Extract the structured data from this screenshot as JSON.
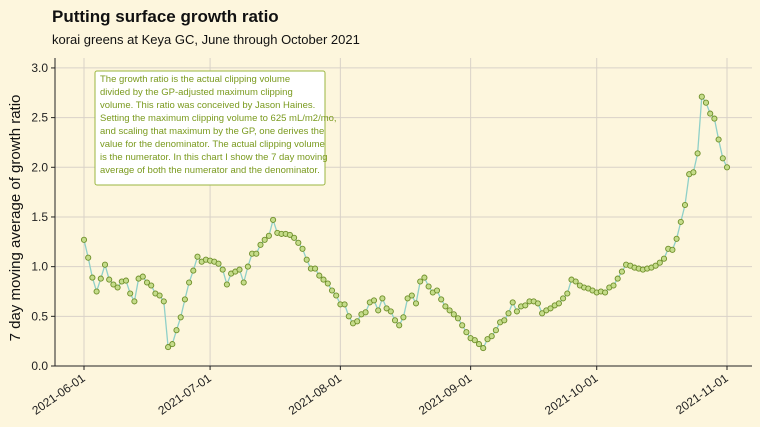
{
  "chart_data": {
    "type": "line",
    "title": "Putting surface growth ratio",
    "subtitle": "korai greens at Keya GC, June through October 2021",
    "ylabel": "7 day moving average of growth ratio",
    "xlabel": "",
    "x_ticks": [
      "2021-06-01",
      "2021-07-01",
      "2021-08-01",
      "2021-09-01",
      "2021-10-01",
      "2021-11-01"
    ],
    "y_ticks": [
      "0.0",
      "0.5",
      "1.0",
      "1.5",
      "2.0",
      "2.5",
      "3.0"
    ],
    "xlim": [
      "2021-06-01",
      "2021-11-01"
    ],
    "ylim": [
      0,
      3.1
    ],
    "grid": true,
    "line_color": "#8fd0c8",
    "point_fill": "#c5dc8a",
    "point_stroke": "#6f8f2a",
    "annotation": {
      "lines": [
        "The growth ratio is the actual clipping volume",
        "divided by the GP-adjusted maximum clipping",
        "volume. This ratio was conceived by Jason Haines.",
        "Setting the maximum clipping volume to 625 mL/m2/mo,",
        "and scaling that maximum by the GP, one derives the",
        "value for the denominator. The actual clipping volume",
        "is the numerator. In this chart I show the 7 day moving",
        "average of both the numerator and the denominator."
      ]
    },
    "series": [
      {
        "start_date": "2021-06-01",
        "values": [
          1.27,
          1.09,
          0.89,
          0.75,
          0.88,
          1.02,
          0.87,
          0.82,
          0.79,
          0.85,
          0.86,
          0.73,
          0.65,
          0.88,
          0.9,
          0.84,
          0.81,
          0.73,
          0.71,
          0.65,
          0.19,
          0.22,
          0.36,
          0.49,
          0.67,
          0.84,
          0.96,
          1.1,
          1.05,
          1.07,
          1.06,
          1.05,
          1.03,
          0.97,
          0.82,
          0.93,
          0.95,
          0.97,
          0.84,
          1.0,
          1.13,
          1.13,
          1.22,
          1.27,
          1.31,
          1.47,
          1.34,
          1.33,
          1.33,
          1.32,
          1.29,
          1.24,
          1.18,
          1.07,
          0.98,
          0.98,
          0.91,
          0.87,
          0.83,
          0.76,
          0.71,
          0.62,
          0.62,
          0.5,
          0.43,
          0.45,
          0.52,
          0.54,
          0.64,
          0.66,
          0.56,
          0.68,
          0.58,
          0.55,
          0.46,
          0.41,
          0.49,
          0.68,
          0.71,
          0.63,
          0.85,
          0.89,
          0.8,
          0.74,
          0.76,
          0.67,
          0.6,
          0.56,
          0.52,
          0.48,
          0.41,
          0.34,
          0.28,
          0.26,
          0.22,
          0.18,
          0.27,
          0.3,
          0.36,
          0.44,
          0.46,
          0.53,
          0.64,
          0.55,
          0.6,
          0.61,
          0.65,
          0.65,
          0.63,
          0.53,
          0.56,
          0.58,
          0.61,
          0.63,
          0.68,
          0.73,
          0.87,
          0.85,
          0.81,
          0.79,
          0.78,
          0.76,
          0.74,
          0.75,
          0.74,
          0.79,
          0.81,
          0.88,
          0.95,
          1.02,
          1.01,
          0.99,
          0.98,
          0.97,
          0.98,
          0.99,
          1.01,
          1.04,
          1.08,
          1.18,
          1.17,
          1.28,
          1.45,
          1.62,
          1.93,
          1.95,
          2.14,
          2.71,
          2.65,
          2.54,
          2.49,
          2.28,
          2.09,
          2.0
        ]
      }
    ]
  }
}
